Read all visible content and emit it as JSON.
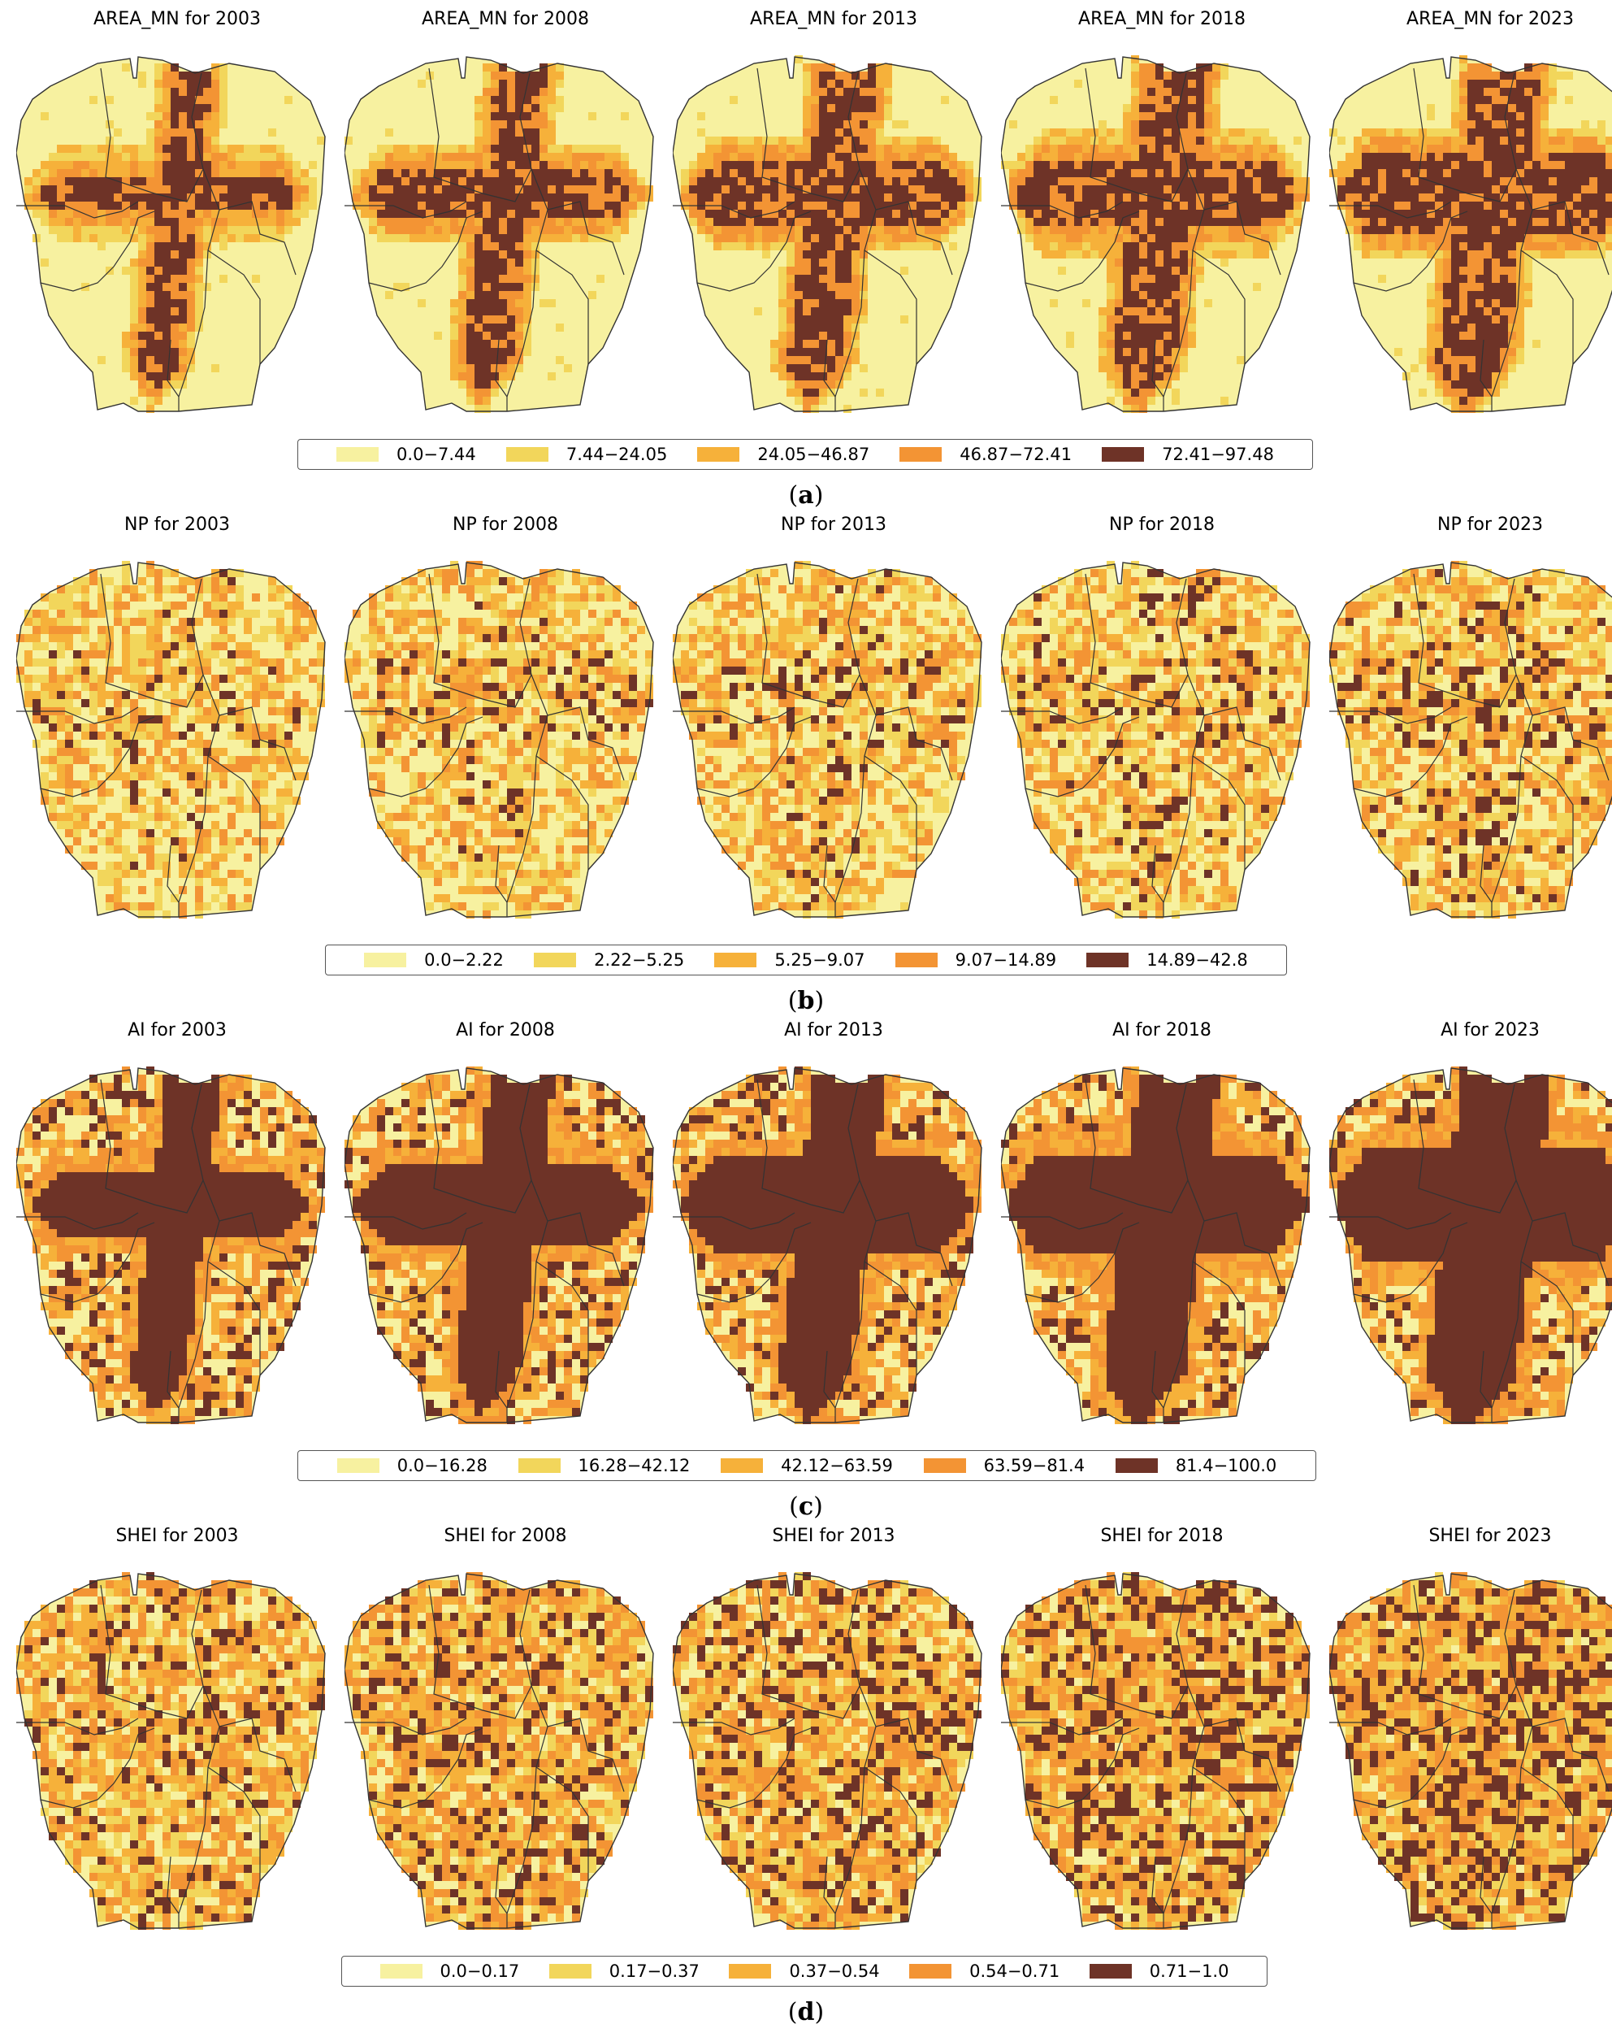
{
  "colors": [
    "#f7f1a0",
    "#f2d65b",
    "#f6b13a",
    "#f39434",
    "#6e3327"
  ],
  "panels": [
    {
      "caption": "a",
      "titles": [
        "AREA_MN for 2003",
        "AREA_MN for 2008",
        "AREA_MN for 2013",
        "AREA_MN for 2018",
        "AREA_MN for 2023"
      ],
      "legend": [
        "0.0−7.44",
        "7.44−24.05",
        "24.05−46.87",
        "46.87−72.41",
        "72.41−97.48"
      ]
    },
    {
      "caption": "b",
      "titles": [
        "NP for 2003",
        "NP for 2008",
        "NP for 2013",
        "NP for 2018",
        "NP for 2023"
      ],
      "legend": [
        "0.0−2.22",
        "2.22−5.25",
        "5.25−9.07",
        "9.07−14.89",
        "14.89−42.8"
      ]
    },
    {
      "caption": "c",
      "titles": [
        "AI for 2003",
        "AI for 2008",
        "AI for 2013",
        "AI for 2018",
        "AI for 2023"
      ],
      "legend": [
        "0.0−16.28",
        "16.28−42.12",
        "42.12−63.59",
        "63.59−81.4",
        "81.4−100.0"
      ]
    },
    {
      "caption": "d",
      "titles": [
        "SHEI for 2003",
        "SHEI for 2008",
        "SHEI for 2013",
        "SHEI for 2018",
        "SHEI for 2023"
      ],
      "legend": [
        "0.0−0.17",
        "0.17−0.37",
        "0.37−0.54",
        "0.54−0.71",
        "0.71−1.0"
      ]
    }
  ]
}
